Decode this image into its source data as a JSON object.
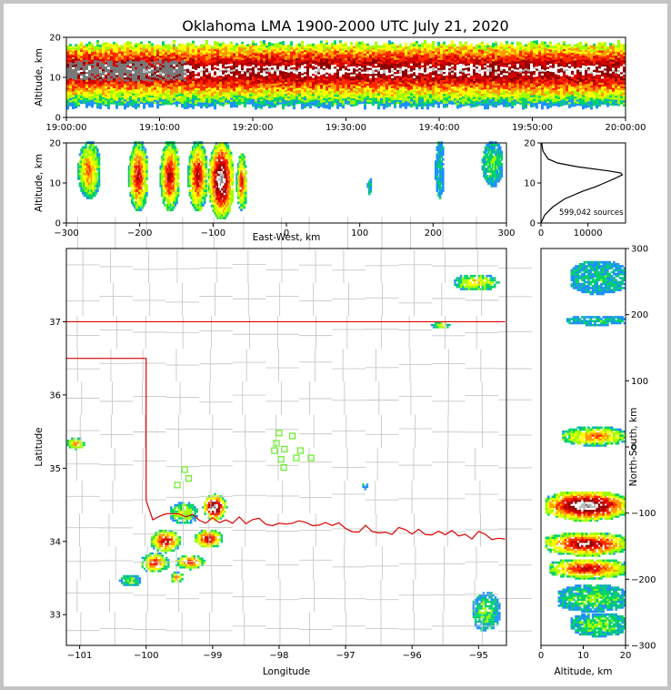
{
  "title": "Oklahoma LMA 1900-2000 UTC July 21, 2020",
  "colors": {
    "density": [
      "#1e90ff",
      "#00d26a",
      "#a0ff00",
      "#ffff00",
      "#ff9900",
      "#ff2a00",
      "#d40000",
      "#900000",
      "#ffffff",
      "#bcbcbc",
      "#787878"
    ],
    "state_border": "#dd0000",
    "county_lines": "#c8c8c8",
    "stations": "#66ee22"
  },
  "chart_data": [
    {
      "panel": "altitude-time",
      "type": "heatmap",
      "xlabel": "",
      "ylabel": "Altitude, km",
      "x_ticks": [
        "19:00:00",
        "19:10:00",
        "19:20:00",
        "19:30:00",
        "19:40:00",
        "19:50:00",
        "20:00:00"
      ],
      "y_ticks": [
        "0",
        "10",
        "20"
      ],
      "ylim": [
        0,
        20
      ],
      "band": {
        "from_km": 2,
        "to_km": 19,
        "core_km": [
          9,
          14
        ]
      }
    },
    {
      "panel": "altitude-east-west",
      "type": "heatmap",
      "xlabel": "East-West, km",
      "ylabel": "Altitude, km",
      "x_ticks": [
        "−300",
        "−200",
        "−100",
        "0",
        "100",
        "200",
        "300"
      ],
      "y_ticks": [
        "0",
        "10",
        "20"
      ],
      "xlim": [
        -300,
        300
      ],
      "ylim": [
        0,
        20
      ],
      "cells": [
        {
          "x": -270,
          "w": 30,
          "alt_lo": 6,
          "alt_hi": 20,
          "level": 5
        },
        {
          "x": -203,
          "w": 26,
          "alt_lo": 3,
          "alt_hi": 20,
          "level": 7
        },
        {
          "x": -160,
          "w": 26,
          "alt_lo": 3,
          "alt_hi": 20,
          "level": 7
        },
        {
          "x": -122,
          "w": 26,
          "alt_lo": 3,
          "alt_hi": 20,
          "level": 7
        },
        {
          "x": -90,
          "w": 34,
          "alt_lo": 1,
          "alt_hi": 20,
          "level": 10
        },
        {
          "x": -62,
          "w": 14,
          "alt_lo": 3,
          "alt_hi": 17,
          "level": 6
        },
        {
          "x": 112,
          "w": 5,
          "alt_lo": 7,
          "alt_hi": 11,
          "level": 1
        },
        {
          "x": 208,
          "w": 12,
          "alt_lo": 6,
          "alt_hi": 20,
          "level": 1
        },
        {
          "x": 280,
          "w": 28,
          "alt_lo": 9,
          "alt_hi": 20,
          "level": 2
        }
      ]
    },
    {
      "panel": "altitude-histogram",
      "type": "line",
      "xlim": [
        0,
        18000
      ],
      "ylim": [
        0,
        20
      ],
      "x_ticks": [
        "0",
        "10000"
      ],
      "y_ticks": [
        "0",
        "10",
        "20"
      ],
      "annotation": "599,042 sources",
      "profile": {
        "alt_km": [
          0,
          2,
          4,
          6,
          8,
          9,
          10,
          11,
          12,
          12.5,
          13,
          14,
          15,
          16,
          18,
          20
        ],
        "count": [
          0,
          800,
          2500,
          5000,
          9000,
          11500,
          13500,
          15500,
          17300,
          17000,
          14500,
          8000,
          3500,
          1500,
          400,
          150
        ]
      }
    },
    {
      "panel": "plan-view",
      "type": "heatmap",
      "xlabel": "Longitude",
      "ylabel": "Latitude",
      "x_ticks": [
        "−101",
        "−100",
        "−99",
        "−98",
        "−97",
        "−96",
        "−95"
      ],
      "y_ticks": [
        "33",
        "34",
        "35",
        "36",
        "37"
      ],
      "xlim": [
        -101.2,
        -94.58
      ],
      "ylim": [
        32.58,
        38.0
      ],
      "storms": [
        {
          "lon": -101.07,
          "lat": 35.35,
          "rx": 0.15,
          "ry": 0.08,
          "level": 5
        },
        {
          "lon": -99.72,
          "lat": 34.02,
          "rx": 0.24,
          "ry": 0.16,
          "level": 7
        },
        {
          "lon": -99.88,
          "lat": 33.72,
          "rx": 0.22,
          "ry": 0.14,
          "level": 6
        },
        {
          "lon": -99.35,
          "lat": 33.73,
          "rx": 0.24,
          "ry": 0.1,
          "level": 6
        },
        {
          "lon": -99.08,
          "lat": 34.05,
          "rx": 0.22,
          "ry": 0.13,
          "level": 7
        },
        {
          "lon": -98.98,
          "lat": 34.48,
          "rx": 0.18,
          "ry": 0.18,
          "level": 10
        },
        {
          "lon": -99.55,
          "lat": 33.52,
          "rx": 0.1,
          "ry": 0.08,
          "level": 5
        },
        {
          "lon": -99.45,
          "lat": 34.4,
          "rx": 0.22,
          "ry": 0.16,
          "level": 3
        },
        {
          "lon": -100.25,
          "lat": 33.48,
          "rx": 0.16,
          "ry": 0.09,
          "level": 2
        },
        {
          "lon": -95.05,
          "lat": 37.55,
          "rx": 0.35,
          "ry": 0.12,
          "level": 4
        },
        {
          "lon": -95.58,
          "lat": 36.97,
          "rx": 0.14,
          "ry": 0.06,
          "level": 3
        },
        {
          "lon": -94.9,
          "lat": 33.05,
          "rx": 0.22,
          "ry": 0.28,
          "level": 2
        },
        {
          "lon": -96.72,
          "lat": 34.77,
          "rx": 0.06,
          "ry": 0.04,
          "level": 1
        }
      ],
      "stations": [
        {
          "lon": -98.0,
          "lat": 35.48
        },
        {
          "lon": -97.8,
          "lat": 35.44
        },
        {
          "lon": -98.04,
          "lat": 35.34
        },
        {
          "lon": -97.92,
          "lat": 35.26
        },
        {
          "lon": -98.07,
          "lat": 35.24
        },
        {
          "lon": -97.68,
          "lat": 35.24
        },
        {
          "lon": -97.97,
          "lat": 35.12
        },
        {
          "lon": -97.74,
          "lat": 35.14
        },
        {
          "lon": -97.52,
          "lat": 35.14
        },
        {
          "lon": -97.93,
          "lat": 35.01
        },
        {
          "lon": -99.42,
          "lat": 34.98
        },
        {
          "lon": -99.36,
          "lat": 34.86
        },
        {
          "lon": -99.53,
          "lat": 34.77
        }
      ]
    },
    {
      "panel": "north-south-altitude",
      "type": "heatmap",
      "xlabel": "Altitude, km",
      "ylabel": "North-South, km",
      "x_ticks": [
        "0",
        "10",
        "20"
      ],
      "y_ticks": [
        "−300",
        "−200",
        "−100",
        "0",
        "100",
        "200",
        "300"
      ],
      "xlim": [
        0,
        20
      ],
      "ylim": [
        -300,
        300
      ],
      "cells": [
        {
          "ns": 255,
          "h": 50,
          "alt_lo": 7,
          "alt_hi": 20,
          "level": 1
        },
        {
          "ns": 190,
          "h": 14,
          "alt_lo": 6,
          "alt_hi": 20,
          "level": 1
        },
        {
          "ns": 15,
          "h": 28,
          "alt_lo": 5,
          "alt_hi": 20,
          "level": 5
        },
        {
          "ns": -90,
          "h": 45,
          "alt_lo": 1,
          "alt_hi": 20,
          "level": 10
        },
        {
          "ns": -148,
          "h": 35,
          "alt_lo": 1,
          "alt_hi": 20,
          "level": 8
        },
        {
          "ns": -185,
          "h": 30,
          "alt_lo": 2,
          "alt_hi": 20,
          "level": 7
        },
        {
          "ns": -230,
          "h": 40,
          "alt_lo": 4,
          "alt_hi": 20,
          "level": 2
        },
        {
          "ns": -270,
          "h": 35,
          "alt_lo": 7,
          "alt_hi": 20,
          "level": 2
        }
      ]
    }
  ]
}
